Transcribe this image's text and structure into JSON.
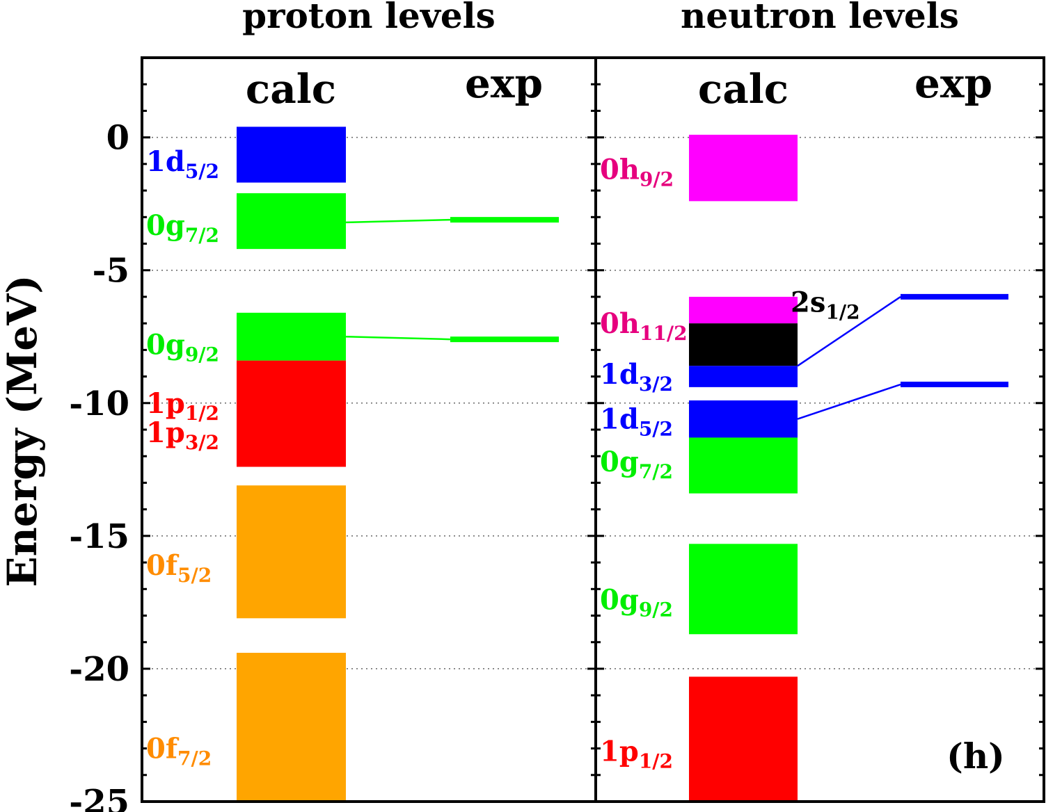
{
  "chart_data": {
    "type": "bar",
    "panel_label": "(h)",
    "ylabel": "Energy (MeV)",
    "ylim": [
      -25,
      3
    ],
    "yticks": [
      0,
      -5,
      -10,
      -15,
      -20,
      -25
    ],
    "ytick_labels": [
      "0",
      "-5",
      "-10",
      "-15",
      "-20",
      "-25"
    ],
    "grid": "dotted horizontal at major ticks",
    "column_labels": [
      "calc",
      "exp"
    ],
    "colors": {
      "d": "#0000ff",
      "g": "#00ff00",
      "p": "#ff0000",
      "f": "#ffa500",
      "h": "#ff00ff",
      "s": "#000000"
    },
    "panels": [
      {
        "title": "proton levels",
        "calc": [
          {
            "orbital": "1d",
            "j": "5/2",
            "color": "#0000ff",
            "label_color": "#0000ff",
            "label_e": -0.9,
            "e_top": 0.4,
            "e_bottom": -1.7
          },
          {
            "orbital": "0g",
            "j": "7/2",
            "color": "#00ff00",
            "label_color": "#00ee00",
            "label_e": -3.3,
            "e_top": -2.1,
            "e_bottom": -4.2
          },
          {
            "orbital": "0g",
            "j": "9/2",
            "color": "#00ff00",
            "label_color": "#00ee00",
            "label_e": -7.8,
            "e_top": -6.6,
            "e_bottom": -8.4
          },
          {
            "orbital": "1p",
            "j": "1/2",
            "color": "#ff0000",
            "label_color": "#ff0000",
            "label_e": -10.0,
            "e_top": -8.4,
            "e_bottom": -12.4
          },
          {
            "orbital": "1p",
            "j": "3/2",
            "color": "#ff0000",
            "label_color": "#ff0000",
            "label_e": -11.1,
            "e_top": null,
            "e_bottom": null
          },
          {
            "orbital": "0f",
            "j": "5/2",
            "color": "#ffa500",
            "label_color": "#ff8c00",
            "label_e": -16.1,
            "e_top": -13.1,
            "e_bottom": -18.1
          },
          {
            "orbital": "0f",
            "j": "7/2",
            "color": "#ffa500",
            "label_color": "#ff8c00",
            "label_e": -23.0,
            "e_top": -19.4,
            "e_bottom": -25.0
          }
        ],
        "exp": [
          {
            "orbital": "0g",
            "j": "7/2",
            "energy": -3.1,
            "color": "#00ff00",
            "calc_link_e": -3.2
          },
          {
            "orbital": "0g",
            "j": "9/2",
            "energy": -7.6,
            "color": "#00ff00",
            "calc_link_e": -7.5
          }
        ]
      },
      {
        "title": "neutron levels",
        "calc": [
          {
            "orbital": "0h",
            "j": "9/2",
            "color": "#ff00ff",
            "label_color": "#e6007e",
            "label_e": -1.2,
            "e_top": 0.1,
            "e_bottom": -2.4
          },
          {
            "orbital": "0h",
            "j": "11/2",
            "color": "#ff00ff",
            "label_color": "#e6007e",
            "label_e": -7.0,
            "e_top": -6.0,
            "e_bottom": -7.0
          },
          {
            "orbital": "2s",
            "j": "1/2",
            "color": "#000000",
            "label_color": "#000000",
            "label_e": -6.2,
            "e_top": -7.0,
            "e_bottom": -8.6,
            "label_side": "right"
          },
          {
            "orbital": "1d",
            "j": "3/2",
            "color": "#0000ff",
            "label_color": "#0000ff",
            "label_e": -8.9,
            "e_top": -8.6,
            "e_bottom": -9.4
          },
          {
            "orbital": "1d",
            "j": "5/2",
            "color": "#0000ff",
            "label_color": "#0000ff",
            "label_e": -10.6,
            "e_top": -9.9,
            "e_bottom": -11.3
          },
          {
            "orbital": "0g",
            "j": "7/2",
            "color": "#00ff00",
            "label_color": "#00ee00",
            "label_e": -12.2,
            "e_top": -11.3,
            "e_bottom": -13.4
          },
          {
            "orbital": "0g",
            "j": "9/2",
            "color": "#00ff00",
            "label_color": "#00ee00",
            "label_e": -17.4,
            "e_top": -15.3,
            "e_bottom": -18.7
          },
          {
            "orbital": "1p",
            "j": "1/2",
            "color": "#ff0000",
            "label_color": "#ff0000",
            "label_e": -23.1,
            "e_top": -20.3,
            "e_bottom": -25.0
          }
        ],
        "exp": [
          {
            "orbital": "2s",
            "j": "1/2",
            "energy": -6.0,
            "color": "#0000ff",
            "calc_link_e": -8.6
          },
          {
            "orbital": "1d",
            "j": "5/2",
            "energy": -9.3,
            "color": "#0000ff",
            "calc_link_e": -10.6
          }
        ]
      }
    ]
  }
}
